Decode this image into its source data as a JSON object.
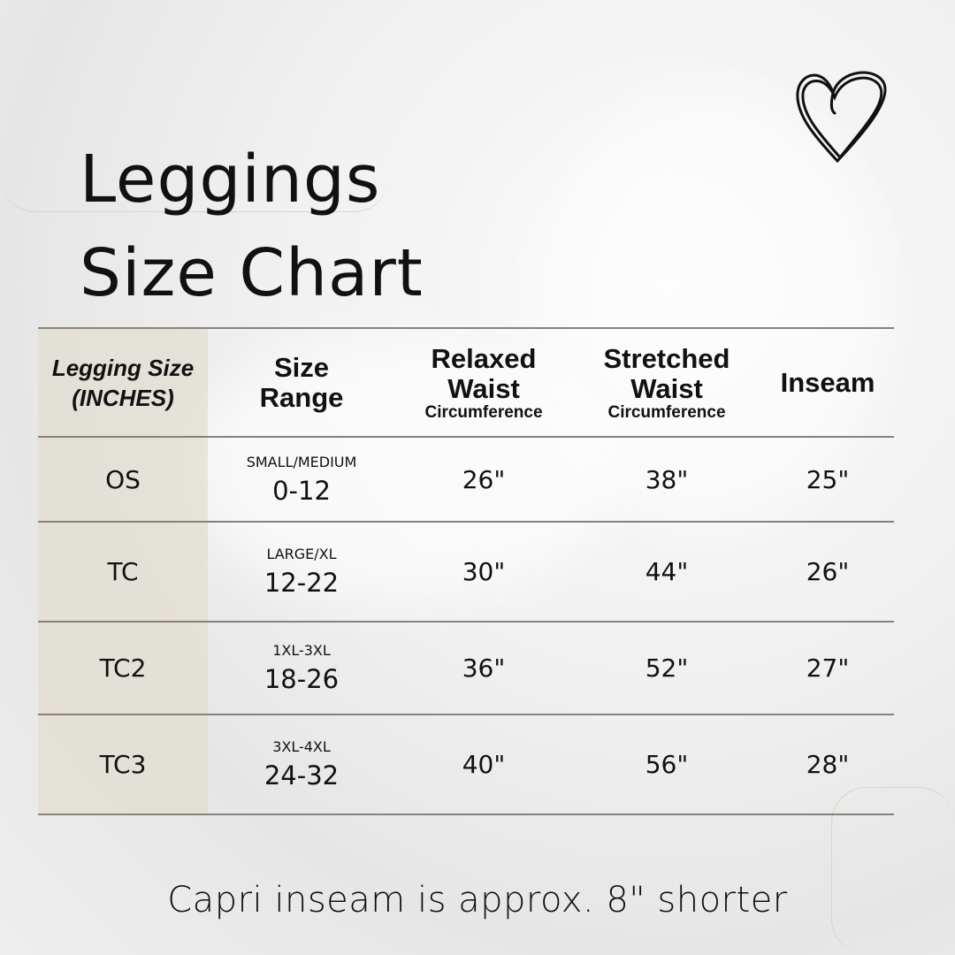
{
  "title_lines": [
    "Leggings",
    "Size Chart"
  ],
  "heart_icon": "heart-outline-icon",
  "table": {
    "headers": [
      {
        "lines": [
          "Legging Size",
          "(INCHES)"
        ],
        "sub": ""
      },
      {
        "lines": [
          "Size",
          "Range"
        ],
        "sub": ""
      },
      {
        "lines": [
          "Relaxed",
          "Waist"
        ],
        "sub": "Circumference"
      },
      {
        "lines": [
          "Stretched",
          "Waist"
        ],
        "sub": "Circumference"
      },
      {
        "lines": [
          "Inseam"
        ],
        "sub": ""
      }
    ],
    "rows": [
      {
        "size": "OS",
        "range_label": "SMALL/MEDIUM",
        "range": "0-12",
        "relaxed": "26\"",
        "stretched": "38\"",
        "inseam": "25\""
      },
      {
        "size": "TC",
        "range_label": "LARGE/XL",
        "range": "12-22",
        "relaxed": "30\"",
        "stretched": "44\"",
        "inseam": "26\""
      },
      {
        "size": "TC2",
        "range_label": "1XL-3XL",
        "range": "18-26",
        "relaxed": "36\"",
        "stretched": "52\"",
        "inseam": "27\""
      },
      {
        "size": "TC3",
        "range_label": "3XL-4XL",
        "range": "24-32",
        "relaxed": "40\"",
        "stretched": "56\"",
        "inseam": "28\""
      }
    ]
  },
  "footer": "Capri inseam is approx. 8\" shorter",
  "colors": {
    "first_column_bg": "#e1ddd2",
    "rule": "#8a8078",
    "text": "#111111"
  }
}
